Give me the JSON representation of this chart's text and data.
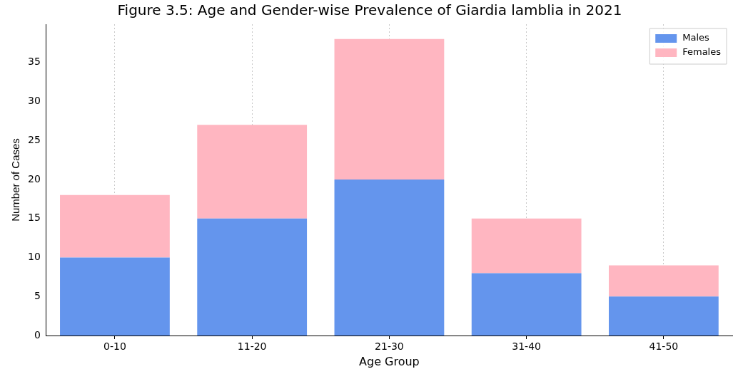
{
  "chart_data": {
    "type": "bar",
    "title": "Figure 3.5: Age and Gender-wise Prevalence of Giardia lamblia in 2021",
    "xlabel": "Age Group",
    "ylabel": "Number of Cases",
    "categories": [
      "0-10",
      "11-20",
      "21-30",
      "31-40",
      "41-50"
    ],
    "stacked": true,
    "series": [
      {
        "name": "Males",
        "color": "#6495ed",
        "values": [
          10,
          15,
          20,
          8,
          5
        ]
      },
      {
        "name": "Females",
        "color": "#ffb6c1",
        "values": [
          8,
          12,
          18,
          7,
          4
        ]
      }
    ],
    "ylim": [
      0,
      39.9
    ],
    "yticks": [
      0,
      5,
      10,
      15,
      20,
      25,
      30,
      35
    ],
    "grid": "x",
    "legend": "top right"
  }
}
